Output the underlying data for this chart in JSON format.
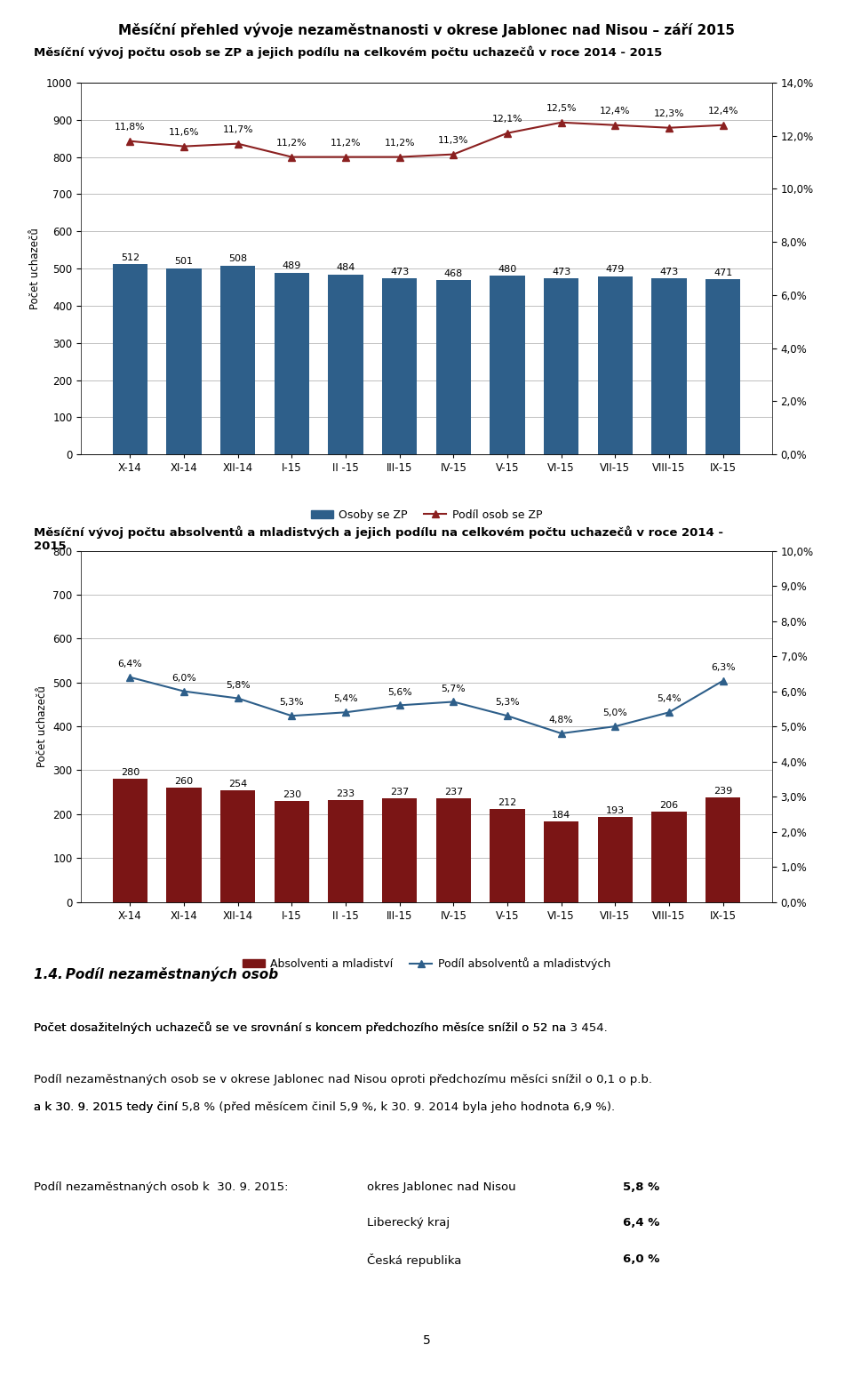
{
  "page_title": "Měsíční přehled vývoje nezaměstnanosti v okrese Jablonec nad Nisou – září 2015",
  "chart1_title": "Měsíční vývoj počtu osob se ZP a jejich podílu na celkovém počtu uchazečů v roce 2014 - 2015",
  "chart2_title": "Měsíční vývoj počtu absolventů a mladistvých a jejich podílu na celkovém počtu uchazečů v roce 2014 -\n2015",
  "categories": [
    "X-14",
    "XI-14",
    "XII-14",
    "I-15",
    "II -15",
    "III-15",
    "IV-15",
    "V-15",
    "VI-15",
    "VII-15",
    "VIII-15",
    "IX-15"
  ],
  "chart1_bars": [
    512,
    501,
    508,
    489,
    484,
    473,
    468,
    480,
    473,
    479,
    473,
    471
  ],
  "chart1_line": [
    11.8,
    11.6,
    11.7,
    11.2,
    11.2,
    11.2,
    11.3,
    12.1,
    12.5,
    12.4,
    12.3,
    12.4
  ],
  "chart1_line_labels": [
    "11,8%",
    "11,6%",
    "11,7%",
    "11,2%",
    "11,2%",
    "11,2%",
    "11,3%",
    "12,1%",
    "12,5%",
    "12,4%",
    "12,3%",
    "12,4%"
  ],
  "chart1_bar_color": "#2E5F8A",
  "chart1_line_color": "#8B2020",
  "chart1_ylim": [
    0,
    1000
  ],
  "chart1_yticks": [
    0,
    100,
    200,
    300,
    400,
    500,
    600,
    700,
    800,
    900,
    1000
  ],
  "chart1_y2lim": [
    0,
    14.0
  ],
  "chart1_y2ticks": [
    0.0,
    2.0,
    4.0,
    6.0,
    8.0,
    10.0,
    12.0,
    14.0
  ],
  "chart1_ylabel": "Počet uchazečů",
  "chart1_legend1": "Osoby se ZP",
  "chart1_legend2": "Podíl osob se ZP",
  "chart2_bars": [
    280,
    260,
    254,
    230,
    233,
    237,
    237,
    212,
    184,
    193,
    206,
    239
  ],
  "chart2_line": [
    6.4,
    6.0,
    5.8,
    5.3,
    5.4,
    5.6,
    5.7,
    5.3,
    4.8,
    5.0,
    5.4,
    6.3
  ],
  "chart2_line_labels": [
    "6,4%",
    "6,0%",
    "5,8%",
    "5,3%",
    "5,4%",
    "5,6%",
    "5,7%",
    "5,3%",
    "4,8%",
    "5,0%",
    "5,4%",
    "6,3%"
  ],
  "chart2_bar_color": "#7B1515",
  "chart2_line_color": "#2E5F8A",
  "chart2_ylim": [
    0,
    800
  ],
  "chart2_yticks": [
    0,
    100,
    200,
    300,
    400,
    500,
    600,
    700,
    800
  ],
  "chart2_y2lim": [
    0,
    10.0
  ],
  "chart2_y2ticks": [
    0.0,
    1.0,
    2.0,
    3.0,
    4.0,
    5.0,
    6.0,
    7.0,
    8.0,
    9.0,
    10.0
  ],
  "chart2_ylabel": "Počet uchazečů",
  "chart2_legend1": "Absolventi a mladiství",
  "chart2_legend2": "Podíl absolventů a mladistvých",
  "section_title": "1.4. Podíl nezaměstnaných osob",
  "para1": "Počet dosažitelných uchazečů se ve srovnání s koncem předchozího měsíce snížil o 52 na ",
  "para1_bold": "3 454",
  "para1_end": ".",
  "para2a": "Podíl nezaměstnaných osob se v okrese Jablonec nad Nisou oproti předchozímu měsíci snížil o 0,1 o p.b.",
  "para2b": "a k 30. 9. 2015 tedy činí ",
  "para2b_bold": "5,8 %",
  "para2b_end": " (před měsícem činil 5,9 %, k 30. 9. 2014 byla jeho hodnota 6,9 %).",
  "table_label": "Podíl nezaměstnaných osob k  30. 9. 2015:",
  "table_col1": [
    "okres Jablonec nad Nisou",
    "Liberecký kraj",
    "Česká republika"
  ],
  "table_col2": [
    "5,8 %",
    "6,4 %",
    "6,0 %"
  ],
  "page_number": "5",
  "bg_color": "#FFFFFF",
  "grid_color": "#C0C0C0",
  "text_color": "#000000"
}
